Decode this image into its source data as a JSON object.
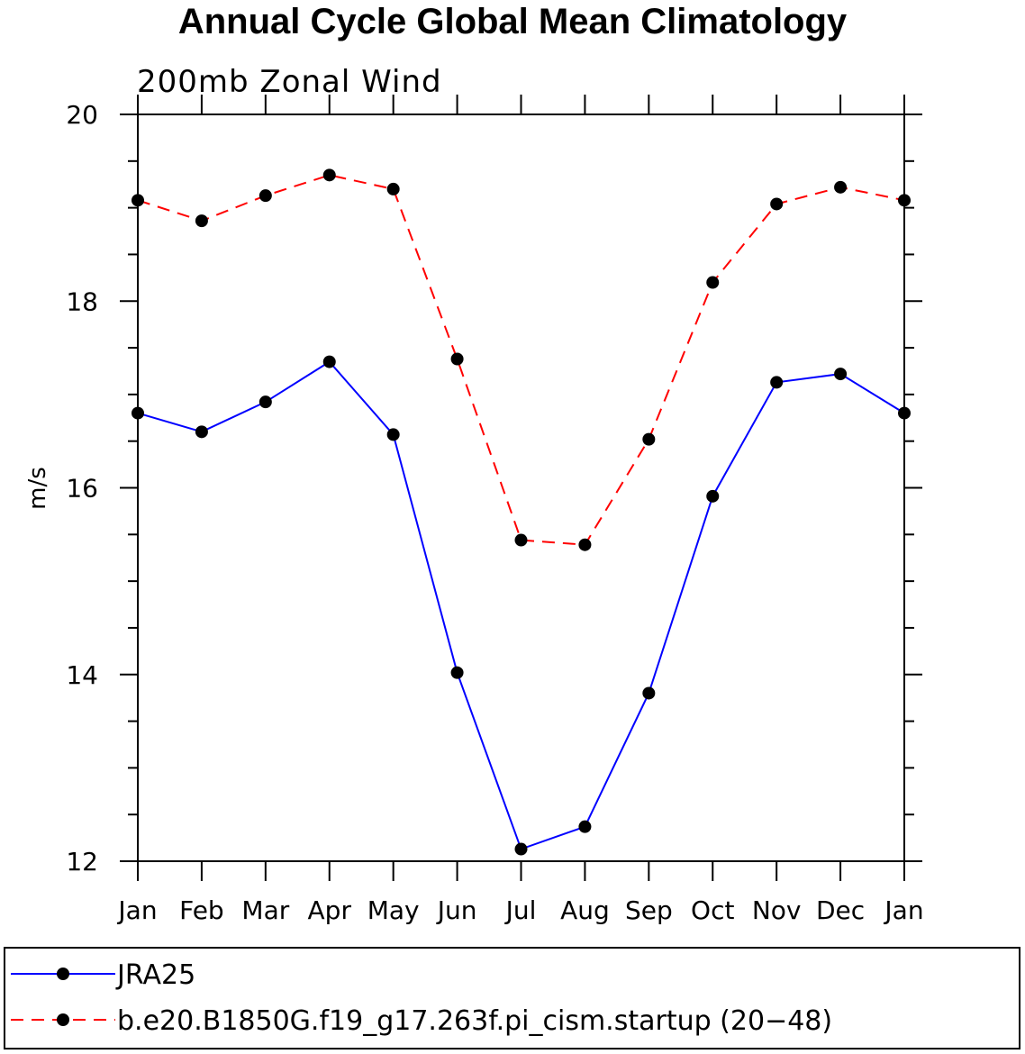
{
  "chart_data": {
    "type": "line",
    "title": "Annual Cycle Global Mean Climatology",
    "subtitle": "200mb Zonal Wind",
    "xlabel": "",
    "ylabel": "m/s",
    "categories": [
      "Jan",
      "Feb",
      "Mar",
      "Apr",
      "May",
      "Jun",
      "Jul",
      "Aug",
      "Sep",
      "Oct",
      "Nov",
      "Dec",
      "Jan"
    ],
    "ylim": [
      12,
      20
    ],
    "yticks": [
      "12",
      "14",
      "16",
      "18",
      "20"
    ],
    "series": [
      {
        "name": "JRA25",
        "color": "#0000ff",
        "dashed": false,
        "marker": "filled-circle",
        "values": [
          16.8,
          16.6,
          16.92,
          17.35,
          16.57,
          14.02,
          12.13,
          12.37,
          13.8,
          15.91,
          17.13,
          17.22,
          16.8
        ]
      },
      {
        "name": "b.e20.B1850G.f19_g17.263f.pi_cism.startup (20−48)",
        "color": "#ff0000",
        "dashed": true,
        "marker": "filled-circle",
        "values": [
          19.08,
          18.86,
          19.13,
          19.35,
          19.2,
          17.38,
          15.44,
          15.39,
          16.52,
          18.2,
          19.04,
          19.22,
          19.08
        ]
      }
    ],
    "legend_position": "bottom"
  }
}
